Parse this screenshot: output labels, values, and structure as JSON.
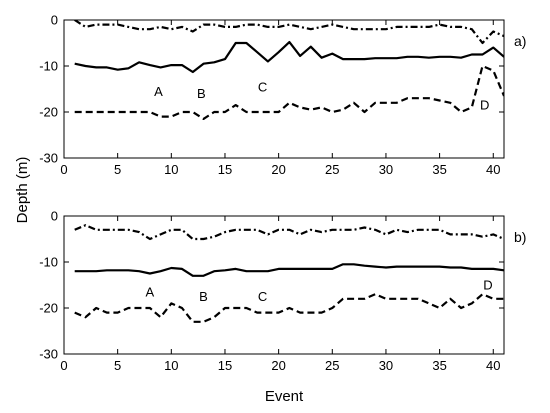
{
  "figure": {
    "ylabel": "Depth (m)",
    "xlabel": "Event"
  },
  "chart_data": [
    {
      "type": "line",
      "panel_label": "a)",
      "xlim": [
        0,
        41
      ],
      "ylim": [
        -30,
        0
      ],
      "xticks": [
        0,
        5,
        10,
        15,
        20,
        25,
        30,
        35,
        40
      ],
      "yticks": [
        -30,
        -20,
        -10,
        0
      ],
      "grid": false,
      "annotations": [
        {
          "text": "A",
          "x": 8.8,
          "y": -16.5
        },
        {
          "text": "B",
          "x": 12.8,
          "y": -17
        },
        {
          "text": "C",
          "x": 18.5,
          "y": -15.5
        },
        {
          "text": "D",
          "x": 39.2,
          "y": -19.5
        }
      ],
      "series": [
        {
          "style": "dash-dot",
          "x": [
            1,
            2,
            3,
            4,
            5,
            6,
            7,
            8,
            9,
            10,
            11,
            12,
            13,
            14,
            15,
            16,
            17,
            18,
            19,
            20,
            21,
            22,
            23,
            24,
            25,
            26,
            27,
            28,
            29,
            30,
            31,
            32,
            33,
            34,
            35,
            36,
            37,
            38,
            39,
            40,
            41
          ],
          "y": [
            0,
            -1.5,
            -1,
            -1,
            -1,
            -1.5,
            -2,
            -2,
            -1.5,
            -2,
            -1.5,
            -2.5,
            -1,
            -1,
            -1.5,
            -1.5,
            -1,
            -1,
            -1.5,
            -1.5,
            -1,
            -1.5,
            -2,
            -1.5,
            -1,
            -1.5,
            -2,
            -2,
            -2,
            -2,
            -1.5,
            -1.5,
            -1.5,
            -1.5,
            -1,
            -1.5,
            -1.5,
            -2,
            -5,
            -2.5,
            -3.5
          ]
        },
        {
          "style": "solid",
          "x": [
            1,
            2,
            3,
            4,
            5,
            6,
            7,
            8,
            9,
            10,
            11,
            12,
            13,
            14,
            15,
            16,
            17,
            18,
            19,
            20,
            21,
            22,
            23,
            24,
            25,
            26,
            27,
            28,
            29,
            30,
            31,
            32,
            33,
            34,
            35,
            36,
            37,
            38,
            39,
            40,
            41
          ],
          "y": [
            -9.5,
            -10,
            -10.3,
            -10.3,
            -10.8,
            -10.5,
            -9.2,
            -9.8,
            -10.3,
            -9.8,
            -9.8,
            -11.3,
            -9.5,
            -9.2,
            -8.5,
            -5,
            -5,
            -7,
            -9,
            -7,
            -4.8,
            -7.8,
            -5.8,
            -8.2,
            -7.3,
            -8.5,
            -8.5,
            -8.5,
            -8.3,
            -8.3,
            -8.3,
            -8,
            -8,
            -8.2,
            -8,
            -8,
            -8.2,
            -7.5,
            -7.5,
            -6,
            -8
          ]
        },
        {
          "style": "dashed",
          "x": [
            1,
            2,
            3,
            4,
            5,
            6,
            7,
            8,
            9,
            10,
            11,
            12,
            13,
            14,
            15,
            16,
            17,
            18,
            19,
            20,
            21,
            22,
            23,
            24,
            25,
            26,
            27,
            28,
            29,
            30,
            31,
            32,
            33,
            34,
            35,
            36,
            37,
            38,
            39,
            40,
            41
          ],
          "y": [
            -20,
            -20,
            -20,
            -20,
            -20,
            -20,
            -20,
            -20,
            -21,
            -21,
            -20,
            -20,
            -21.5,
            -20,
            -20,
            -18.5,
            -20,
            -20,
            -20,
            -20,
            -18,
            -19,
            -19.5,
            -19,
            -20,
            -19.5,
            -18,
            -20,
            -18,
            -18,
            -18,
            -17,
            -17,
            -17,
            -17.5,
            -18,
            -20,
            -19,
            -10,
            -11,
            -16.5
          ]
        }
      ]
    },
    {
      "type": "line",
      "panel_label": "b)",
      "xlim": [
        0,
        41
      ],
      "ylim": [
        -30,
        0
      ],
      "xticks": [
        0,
        5,
        10,
        15,
        20,
        25,
        30,
        35,
        40
      ],
      "yticks": [
        -30,
        -20,
        -10,
        0
      ],
      "grid": false,
      "annotations": [
        {
          "text": "A",
          "x": 8,
          "y": -17.5
        },
        {
          "text": "B",
          "x": 13,
          "y": -18.5
        },
        {
          "text": "C",
          "x": 18.5,
          "y": -18.5
        },
        {
          "text": "D",
          "x": 39.5,
          "y": -16
        }
      ],
      "series": [
        {
          "style": "dash-dot",
          "x": [
            1,
            2,
            3,
            4,
            5,
            6,
            7,
            8,
            9,
            10,
            11,
            12,
            13,
            14,
            15,
            16,
            17,
            18,
            19,
            20,
            21,
            22,
            23,
            24,
            25,
            26,
            27,
            28,
            29,
            30,
            31,
            32,
            33,
            34,
            35,
            36,
            37,
            38,
            39,
            40,
            41
          ],
          "y": [
            -3,
            -2,
            -3,
            -3,
            -3,
            -3,
            -3.5,
            -5,
            -4,
            -3,
            -3,
            -5,
            -5,
            -4.5,
            -3.5,
            -3,
            -3,
            -3,
            -4,
            -3,
            -3,
            -4,
            -3,
            -3.5,
            -3,
            -3,
            -3,
            -2.5,
            -3,
            -4,
            -3,
            -3.5,
            -3,
            -3,
            -3,
            -4,
            -4,
            -4,
            -4.5,
            -4,
            -5
          ]
        },
        {
          "style": "solid",
          "x": [
            1,
            2,
            3,
            4,
            5,
            6,
            7,
            8,
            9,
            10,
            11,
            12,
            13,
            14,
            15,
            16,
            17,
            18,
            19,
            20,
            21,
            22,
            23,
            24,
            25,
            26,
            27,
            28,
            29,
            30,
            31,
            32,
            33,
            34,
            35,
            36,
            37,
            38,
            39,
            40,
            41
          ],
          "y": [
            -12,
            -12,
            -12,
            -11.8,
            -11.8,
            -11.8,
            -12,
            -12.5,
            -12,
            -11.3,
            -11.5,
            -13,
            -13,
            -12,
            -11.8,
            -11.5,
            -12,
            -12,
            -12,
            -11.5,
            -11.5,
            -11.5,
            -11.5,
            -11.5,
            -11.5,
            -10.5,
            -10.5,
            -10.8,
            -11,
            -11.2,
            -11,
            -11,
            -11,
            -11,
            -11,
            -11.2,
            -11.2,
            -11.5,
            -11.5,
            -11.5,
            -11.8
          ]
        },
        {
          "style": "dashed",
          "x": [
            1,
            2,
            3,
            4,
            5,
            6,
            7,
            8,
            9,
            10,
            11,
            12,
            13,
            14,
            15,
            16,
            17,
            18,
            19,
            20,
            21,
            22,
            23,
            24,
            25,
            26,
            27,
            28,
            29,
            30,
            31,
            32,
            33,
            34,
            35,
            36,
            37,
            38,
            39,
            40,
            41
          ],
          "y": [
            -21,
            -22,
            -20,
            -21,
            -21,
            -20,
            -20,
            -20,
            -22,
            -19,
            -20,
            -23,
            -23,
            -22,
            -20,
            -20,
            -20,
            -21,
            -21,
            -21,
            -20,
            -21,
            -21,
            -21,
            -20,
            -18,
            -18,
            -18,
            -17,
            -18,
            -18,
            -18,
            -18,
            -19,
            -20,
            -18,
            -20,
            -19,
            -17,
            -18,
            -18
          ]
        }
      ]
    }
  ]
}
